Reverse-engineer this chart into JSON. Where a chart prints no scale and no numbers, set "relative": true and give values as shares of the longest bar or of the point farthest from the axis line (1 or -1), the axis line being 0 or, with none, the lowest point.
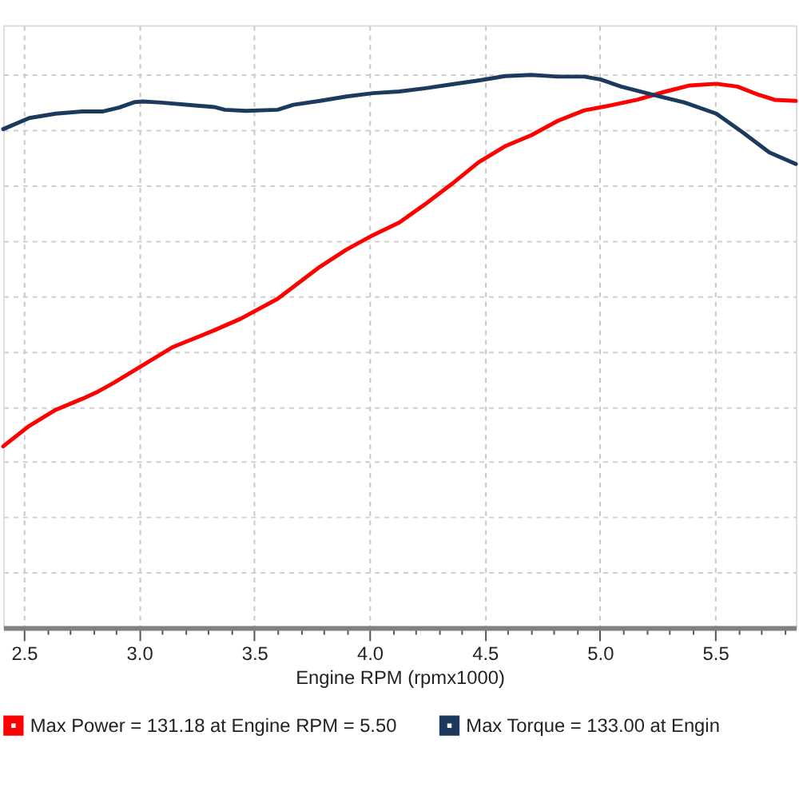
{
  "chart_data": {
    "type": "line",
    "relative": true,
    "xlabel": "Engine RPM (rpmx1000)",
    "xlim": [
      2.41,
      5.85
    ],
    "xticks": [
      2.5,
      {
        "value": 2.6,
        "label": null
      },
      {
        "value": 2.7,
        "label": null
      },
      {
        "value": 2.8,
        "label": null
      },
      {
        "value": 2.9,
        "label": null
      },
      {
        "value": 3,
        "label": "3.0"
      },
      {
        "value": 3.1,
        "label": null
      },
      {
        "value": 3.2,
        "label": null
      },
      {
        "value": 3.3,
        "label": null
      },
      {
        "value": 3.4,
        "label": null
      },
      3.5,
      {
        "value": 3.6,
        "label": null
      },
      {
        "value": 3.7,
        "label": null
      },
      {
        "value": 3.8,
        "label": null
      },
      {
        "value": 3.9,
        "label": null
      },
      {
        "value": 4,
        "label": "4.0"
      },
      {
        "value": 4.1,
        "label": null
      },
      {
        "value": 4.2,
        "label": null
      },
      {
        "value": 4.3,
        "label": null
      },
      {
        "value": 4.4,
        "label": null
      },
      4.5,
      {
        "value": 4.6,
        "label": null
      },
      {
        "value": 4.7,
        "label": null
      },
      {
        "value": 4.8,
        "label": null
      },
      {
        "value": 4.9,
        "label": null
      },
      {
        "value": 5,
        "label": "5.0"
      },
      {
        "value": 5.1,
        "label": null
      },
      {
        "value": 5.2,
        "label": null
      },
      {
        "value": 5.3,
        "label": null
      },
      {
        "value": 5.4,
        "label": null
      },
      5.5,
      {
        "value": 5.6,
        "label": null
      },
      {
        "value": 5.7,
        "label": null
      },
      {
        "value": 5.8,
        "label": null
      }
    ],
    "grid": true,
    "legend": "bottom",
    "series": [
      {
        "name": "Max Power = 131.18 at Engine RPM = 5.50",
        "color": "#ff0000",
        "x": [
          2.41,
          2.523,
          2.638,
          2.753,
          2.821,
          2.89,
          3.143,
          3.326,
          3.441,
          3.601,
          3.785,
          3.9,
          4.014,
          4.129,
          4.244,
          4.358,
          4.473,
          4.588,
          4.702,
          4.817,
          4.932,
          5.046,
          5.161,
          5.276,
          5.39,
          5.505,
          5.597,
          5.689,
          5.758,
          5.85
        ],
        "values": [
          0.328,
          0.365,
          0.394,
          0.414,
          0.427,
          0.443,
          0.507,
          0.538,
          0.559,
          0.595,
          0.653,
          0.684,
          0.71,
          0.733,
          0.767,
          0.803,
          0.842,
          0.871,
          0.891,
          0.917,
          0.936,
          0.945,
          0.955,
          0.969,
          0.981,
          0.984,
          0.979,
          0.964,
          0.955,
          0.953
        ]
      },
      {
        "name": "Max Torque = 133.00 at Engin",
        "color": "#1c3a5e",
        "x": [
          2.41,
          2.523,
          2.638,
          2.753,
          2.844,
          2.913,
          2.982,
          3.016,
          3.097,
          3.212,
          3.326,
          3.372,
          3.464,
          3.601,
          3.67,
          3.785,
          3.9,
          4.014,
          4.129,
          4.244,
          4.358,
          4.473,
          4.588,
          4.702,
          4.817,
          4.932,
          5.001,
          5.092,
          5.23,
          5.368,
          5.505,
          5.62,
          5.735,
          5.85
        ],
        "values": [
          0.902,
          0.922,
          0.93,
          0.934,
          0.934,
          0.941,
          0.951,
          0.952,
          0.95,
          0.946,
          0.942,
          0.937,
          0.935,
          0.937,
          0.946,
          0.953,
          0.961,
          0.967,
          0.97,
          0.976,
          0.983,
          0.99,
          0.998,
          1.0,
          0.997,
          0.997,
          0.992,
          0.979,
          0.964,
          0.95,
          0.93,
          0.896,
          0.86,
          0.839
        ]
      }
    ]
  }
}
